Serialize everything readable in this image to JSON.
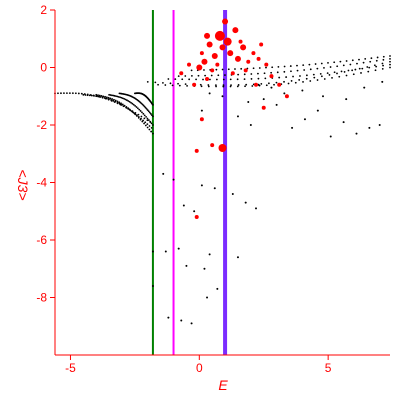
{
  "chart_data": {
    "type": "scatter",
    "xlabel": "E",
    "ylabel": "<J3>",
    "xlim": [
      -5.6,
      7.4
    ],
    "ylim": [
      -10,
      2
    ],
    "x_ticks": [
      -5,
      0,
      5
    ],
    "y_ticks": [
      2,
      0,
      -2,
      -4,
      -6,
      -8
    ],
    "grid": false,
    "colors": {
      "axis": "#ff0000",
      "black_points": "#000000",
      "red_points": "#ff0000"
    },
    "vertical_lines": [
      {
        "x": -1.8,
        "color": "#008000"
      },
      {
        "x": -1.0,
        "color": "#ff00ff"
      },
      {
        "x": 1.0,
        "color": "#7b2cff"
      }
    ],
    "series": [
      {
        "color": "#000000",
        "branches": [
          {
            "x_start": -5.6,
            "y_start": -0.9,
            "x_end": -1.9,
            "y_end": -1.9,
            "curve": 0.35
          },
          {
            "x_start": -4.5,
            "y_start": -0.95,
            "x_end": -1.85,
            "y_end": -2.1,
            "curve": 0.3
          },
          {
            "x_start": -4.0,
            "y_start": -0.95,
            "x_end": -1.8,
            "y_end": -2.3,
            "curve": 0.3
          },
          {
            "x_start": -3.5,
            "y_start": -0.95,
            "x_end": -1.8,
            "y_end": -2.0,
            "curve": 0.25
          },
          {
            "x_start": -3.1,
            "y_start": -0.9,
            "x_end": -1.8,
            "y_end": -1.7,
            "curve": 0.2
          },
          {
            "x_start": -2.5,
            "y_start": -0.9,
            "x_end": -1.8,
            "y_end": -1.3,
            "curve": 0.15
          },
          {
            "x_start": -2.0,
            "y_start": -0.5,
            "x_end": 7.4,
            "y_end": 0.2,
            "curve": -0.4
          },
          {
            "x_start": -1.6,
            "y_start": -0.6,
            "x_end": 7.4,
            "y_end": 0.0,
            "curve": -0.3
          },
          {
            "x_start": -1.2,
            "y_start": -0.4,
            "x_end": 7.4,
            "y_end": 0.1,
            "curve": -0.2
          },
          {
            "x_start": -0.8,
            "y_start": -0.3,
            "x_end": 7.4,
            "y_end": 0.3,
            "curve": -0.15
          },
          {
            "x_start": -0.3,
            "y_start": -0.1,
            "x_end": 7.4,
            "y_end": 0.4,
            "curve": -0.1
          }
        ],
        "scatter": [
          [
            -1.8,
            -6.4
          ],
          [
            -1.8,
            -7.6
          ],
          [
            -1.4,
            -3.7
          ],
          [
            -1.3,
            -6.4
          ],
          [
            -1.2,
            -8.7
          ],
          [
            -1.0,
            -3.9
          ],
          [
            -0.8,
            -6.3
          ],
          [
            -0.7,
            -8.8
          ],
          [
            -0.6,
            -4.8
          ],
          [
            -0.5,
            -6.9
          ],
          [
            -0.3,
            -8.9
          ],
          [
            -0.2,
            -5.0
          ],
          [
            0.1,
            -4.1
          ],
          [
            0.2,
            -7.0
          ],
          [
            0.3,
            -8.0
          ],
          [
            0.4,
            -6.5
          ],
          [
            0.6,
            -4.2
          ],
          [
            0.7,
            -7.7
          ],
          [
            1.3,
            -4.4
          ],
          [
            1.5,
            -6.6
          ],
          [
            1.8,
            -4.7
          ],
          [
            2.2,
            -4.9
          ],
          [
            2.5,
            -1.1
          ],
          [
            3.0,
            -1.3
          ],
          [
            3.6,
            -2.1
          ],
          [
            4.1,
            -1.8
          ],
          [
            4.6,
            -1.5
          ],
          [
            5.1,
            -2.4
          ],
          [
            5.6,
            -1.9
          ],
          [
            6.1,
            -2.3
          ],
          [
            6.6,
            -2.1
          ],
          [
            7.0,
            -2.0
          ],
          [
            3.3,
            -0.9
          ],
          [
            4.0,
            -0.8
          ],
          [
            4.8,
            -1.0
          ],
          [
            5.7,
            -1.1
          ],
          [
            6.4,
            -0.7
          ],
          [
            7.1,
            -0.5
          ],
          [
            2.8,
            -0.7
          ],
          [
            2.3,
            -0.6
          ],
          [
            1.9,
            -1.2
          ],
          [
            0.9,
            -1.0
          ],
          [
            0.4,
            -0.9
          ],
          [
            0.1,
            -1.5
          ],
          [
            1.5,
            -1.7
          ],
          [
            2.0,
            -2.0
          ]
        ]
      },
      {
        "color": "#ff0000",
        "points": [
          [
            0.8,
            1.1,
            5
          ],
          [
            1.1,
            0.9,
            4
          ],
          [
            0.9,
            0.7,
            3
          ],
          [
            1.2,
            0.5,
            3
          ],
          [
            1.5,
            0.3,
            3
          ],
          [
            0.6,
            0.4,
            3
          ],
          [
            0.4,
            0.8,
            3
          ],
          [
            1.4,
            1.3,
            3
          ],
          [
            1.0,
            1.6,
            3
          ],
          [
            0.2,
            0.2,
            3
          ],
          [
            0.0,
            0.0,
            3
          ],
          [
            0.5,
            -0.1,
            2
          ],
          [
            1.7,
            0.7,
            3
          ],
          [
            1.9,
            0.2,
            2
          ],
          [
            2.1,
            0.5,
            2
          ],
          [
            2.4,
            0.8,
            2
          ],
          [
            2.6,
            0.1,
            2
          ],
          [
            2.2,
            -0.6,
            2
          ],
          [
            2.8,
            -0.3,
            2
          ],
          [
            3.1,
            -0.6,
            2
          ],
          [
            3.4,
            -1.0,
            2
          ],
          [
            2.5,
            -1.4,
            2
          ],
          [
            0.1,
            -1.8,
            2
          ],
          [
            -0.1,
            -2.9,
            2
          ],
          [
            0.9,
            -2.8,
            4
          ],
          [
            0.5,
            -2.7,
            2
          ],
          [
            -0.1,
            -5.2,
            2
          ],
          [
            -0.7,
            -0.2,
            2
          ],
          [
            -0.4,
            0.1,
            2
          ],
          [
            0.3,
            -0.4,
            2
          ],
          [
            1.3,
            -0.2,
            2
          ],
          [
            1.8,
            -0.1,
            2
          ],
          [
            0.7,
            0.1,
            2
          ],
          [
            1.6,
            0.9,
            2
          ],
          [
            2.3,
            0.3,
            2
          ],
          [
            0.3,
            1.1,
            3
          ],
          [
            0.1,
            0.5,
            2
          ],
          [
            -0.2,
            -0.6,
            2
          ]
        ]
      }
    ]
  }
}
